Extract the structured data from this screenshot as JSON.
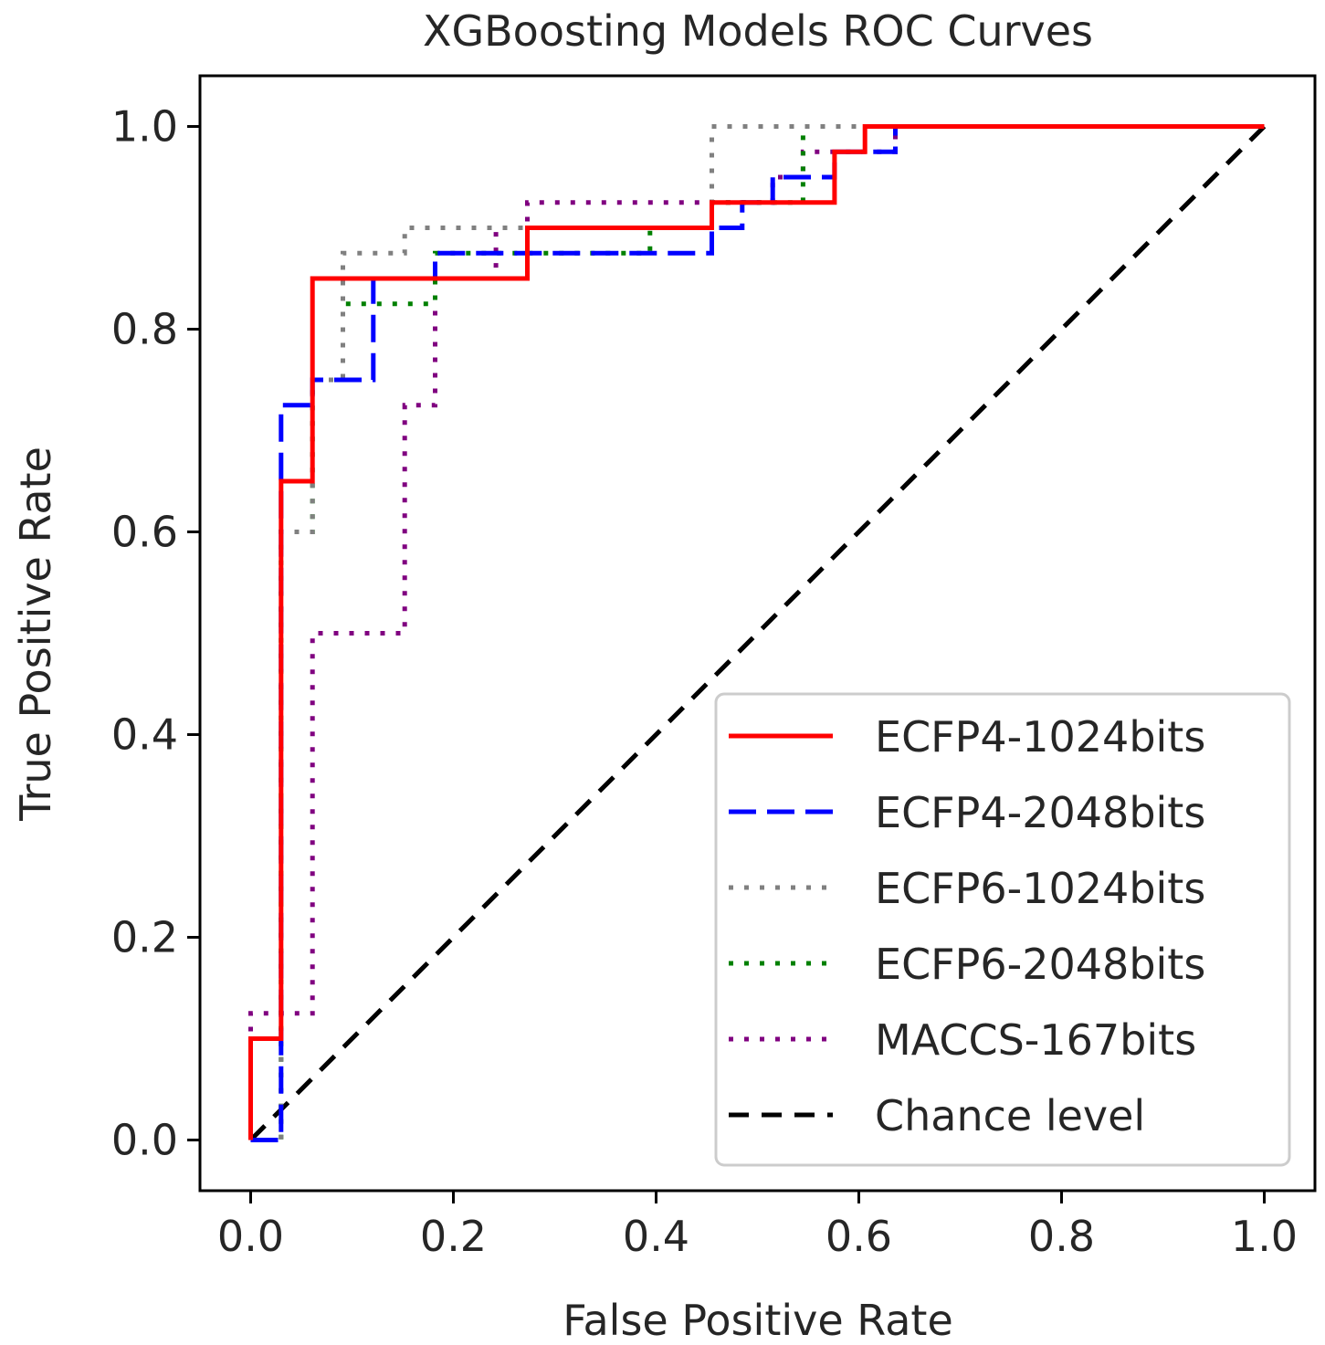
{
  "chart_data": {
    "type": "line",
    "title": "XGBoosting Models ROC Curves",
    "xlabel": "False Positive Rate",
    "ylabel": "True Positive Rate",
    "xlim": [
      -0.05,
      1.05
    ],
    "ylim": [
      -0.05,
      1.05
    ],
    "xticks": [
      "0.0",
      "0.2",
      "0.4",
      "0.6",
      "0.8",
      "1.0"
    ],
    "yticks": [
      "0.0",
      "0.2",
      "0.4",
      "0.6",
      "0.8",
      "1.0"
    ],
    "grid": false,
    "legend_position": "bottom-right",
    "series": [
      {
        "name": "ECFP4-1024bits",
        "color": "#ff0000",
        "style": "solid",
        "x": [
          0,
          0,
          0.03,
          0.03,
          0.061,
          0.061,
          0.273,
          0.273,
          0.455,
          0.455,
          0.576,
          0.576,
          0.606,
          0.606,
          1.0
        ],
        "y": [
          0,
          0.1,
          0.1,
          0.65,
          0.65,
          0.85,
          0.85,
          0.9,
          0.9,
          0.925,
          0.925,
          0.975,
          0.975,
          1.0,
          1.0
        ]
      },
      {
        "name": "ECFP4-2048bits",
        "color": "#0000ff",
        "style": "dashed",
        "x": [
          0,
          0.03,
          0.03,
          0.061,
          0.061,
          0.121,
          0.121,
          0.182,
          0.182,
          0.455,
          0.455,
          0.485,
          0.485,
          0.515,
          0.515,
          0.576,
          0.576,
          0.636,
          0.636,
          1.0
        ],
        "y": [
          0,
          0,
          0.725,
          0.725,
          0.75,
          0.75,
          0.85,
          0.85,
          0.875,
          0.875,
          0.9,
          0.9,
          0.925,
          0.925,
          0.95,
          0.95,
          0.975,
          0.975,
          1.0,
          1.0
        ]
      },
      {
        "name": "ECFP6-1024bits",
        "color": "#808080",
        "style": "dotted",
        "x": [
          0,
          0.03,
          0.03,
          0.061,
          0.061,
          0.091,
          0.091,
          0.152,
          0.152,
          0.455,
          0.455,
          1.0
        ],
        "y": [
          0,
          0,
          0.6,
          0.6,
          0.75,
          0.75,
          0.875,
          0.875,
          0.9,
          0.9,
          1.0,
          1.0
        ]
      },
      {
        "name": "ECFP6-2048bits",
        "color": "#008000",
        "style": "dotted",
        "x": [
          0,
          0.03,
          0.03,
          0.061,
          0.061,
          0.091,
          0.091,
          0.182,
          0.182,
          0.394,
          0.394,
          0.455,
          0.455,
          0.545,
          0.545,
          1.0
        ],
        "y": [
          0,
          0,
          0.6,
          0.6,
          0.75,
          0.75,
          0.825,
          0.825,
          0.875,
          0.875,
          0.9,
          0.9,
          0.925,
          0.925,
          1.0,
          1.0
        ]
      },
      {
        "name": "MACCS-167bits",
        "color": "#800080",
        "style": "dotted",
        "x": [
          0,
          0,
          0.061,
          0.061,
          0.152,
          0.152,
          0.182,
          0.182,
          0.242,
          0.242,
          0.273,
          0.273,
          0.515,
          0.515,
          0.545,
          0.545,
          0.636,
          0.636,
          1.0
        ],
        "y": [
          0,
          0.125,
          0.125,
          0.5,
          0.5,
          0.725,
          0.725,
          0.85,
          0.85,
          0.9,
          0.9,
          0.925,
          0.925,
          0.95,
          0.95,
          0.975,
          0.975,
          1.0,
          1.0
        ]
      },
      {
        "name": "Chance level",
        "color": "#000000",
        "style": "chance",
        "x": [
          0,
          1
        ],
        "y": [
          0,
          1
        ]
      }
    ]
  }
}
